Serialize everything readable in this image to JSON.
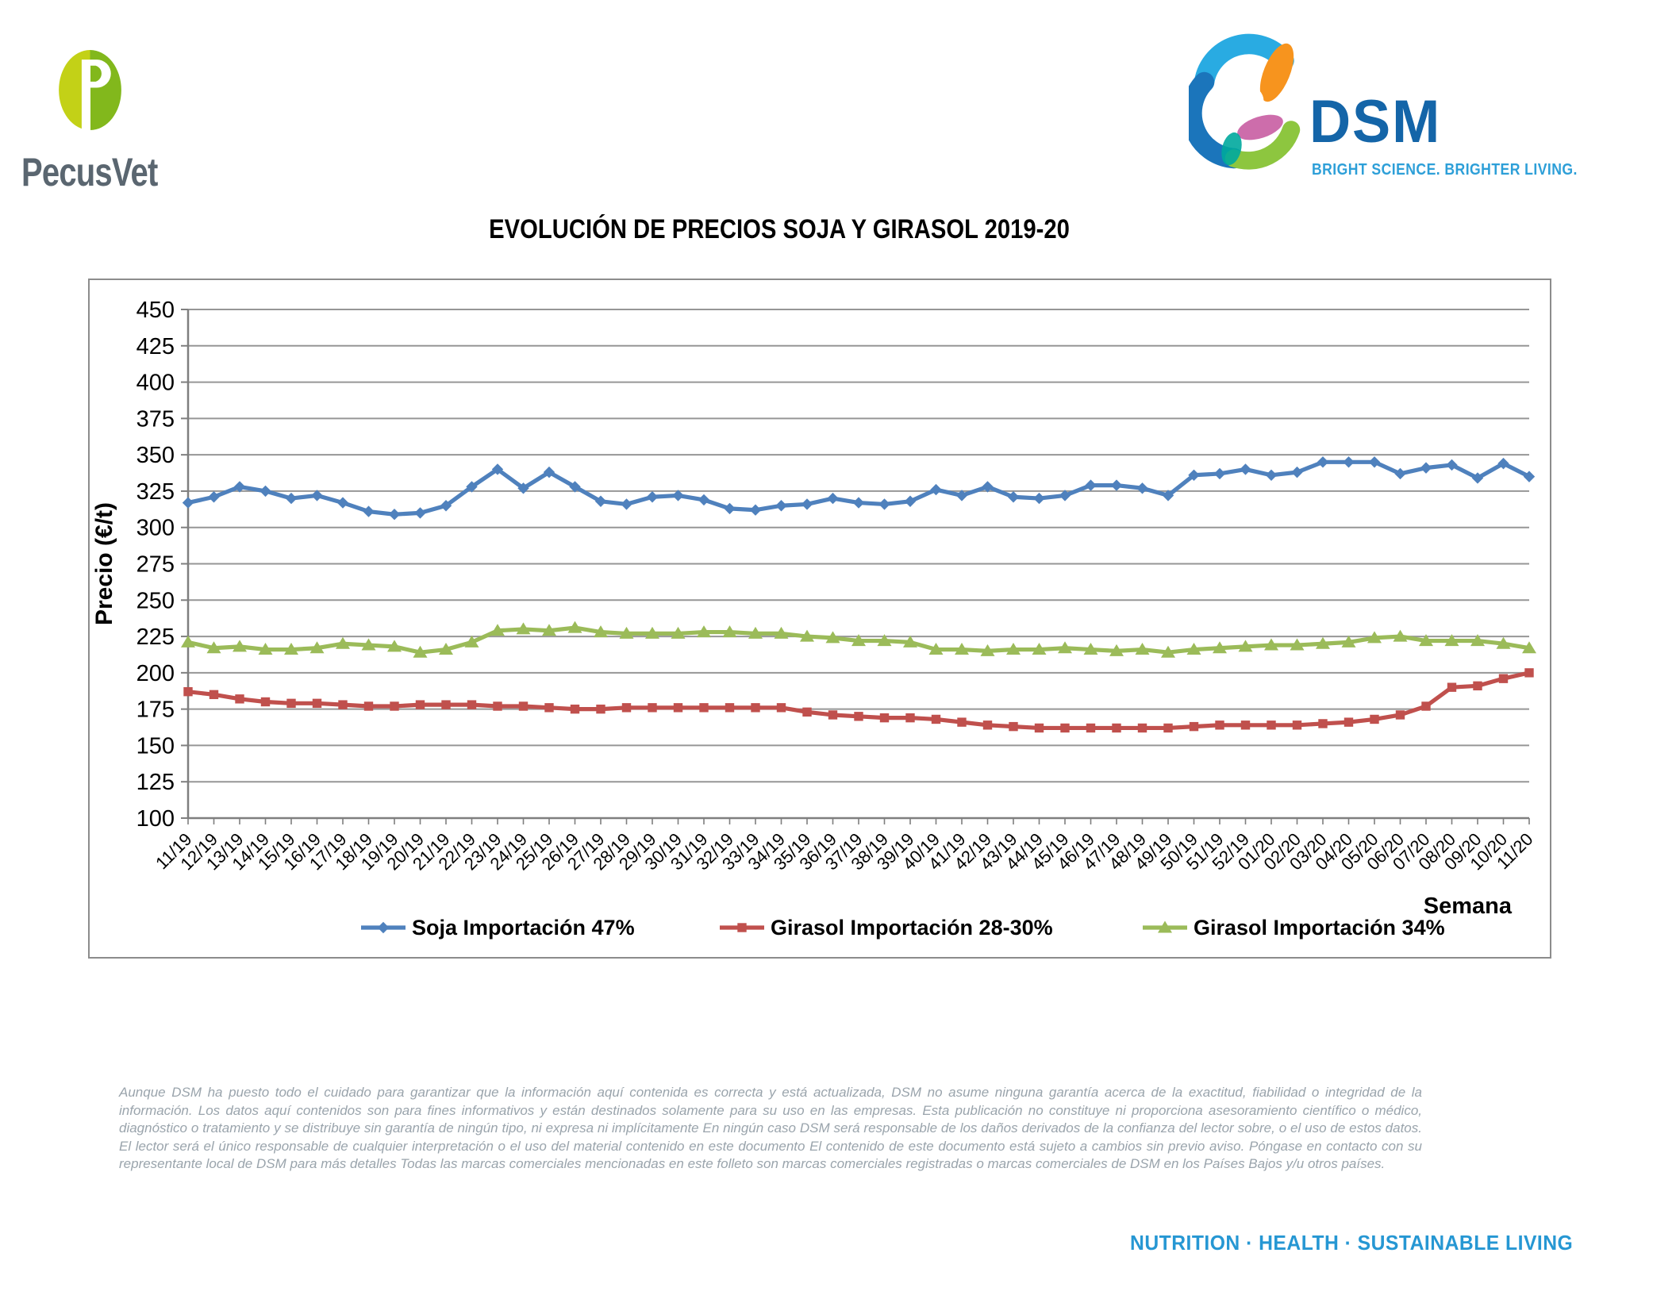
{
  "page": {
    "title": "EVOLUCIÓN DE PRECIOS SOJA Y GIRASOL 2019-20"
  },
  "logos": {
    "pecusvet": {
      "text": "PecusVet",
      "monogram": "P",
      "colors": {
        "left": "#C3D117",
        "right": "#82B81C",
        "text": "#5A6670"
      }
    },
    "dsm": {
      "text": "DSM",
      "tagline": "BRIGHT SCIENCE. BRIGHTER LIVING.",
      "colors": {
        "blue": "#1465A8",
        "tagline": "#2D9FD8",
        "swirl": [
          "#29ABE2",
          "#1B75BB",
          "#8DC63F",
          "#F7941E",
          "#C4549C",
          "#00A99D"
        ]
      }
    }
  },
  "footer": {
    "disclaimer": "Aunque DSM ha puesto todo el cuidado para garantizar que la información aquí contenida es correcta y está actualizada, DSM no asume ninguna garantía acerca de la exactitud, fiabilidad o integridad de la información. Los datos aquí contenidos son para fines informativos y están destinados solamente para su uso en las empresas. Esta publicación no constituye ni proporciona asesoramiento científico o médico, diagnóstico o tratamiento y se distribuye sin garantía de ningún tipo, ni expresa ni implícitamente En ningún caso DSM será responsable de los daños derivados de la confianza del lector sobre, o el uso de estos datos. El lector será el único responsable de cualquier interpretación o el uso del material contenido en este documento El contenido de este documento está sujeto a cambios sin previo aviso. Póngase en contacto con su representante local de DSM para más detalles Todas las marcas comerciales mencionadas en este folleto son marcas comerciales registradas o marcas comerciales de DSM en los Países Bajos y/u otros países.",
    "tagline": "NUTRITION · HEALTH · SUSTAINABLE LIVING",
    "tagline_color": "#2697D3",
    "disclaimer_color": "#9AA4AC"
  },
  "chart_data": {
    "type": "line",
    "title": "EVOLUCIÓN DE PRECIOS SOJA Y GIRASOL 2019-20",
    "xlabel": "Semana",
    "ylabel": "Precio (€/t)",
    "ylim": [
      100,
      450
    ],
    "ytick_step": 25,
    "grid": true,
    "legend_position": "bottom",
    "axis_color": "#7F7F7F",
    "gridline_color": "#969696",
    "categories": [
      "11/19",
      "12/19",
      "13/19",
      "14/19",
      "15/19",
      "16/19",
      "17/19",
      "18/19",
      "19/19",
      "20/19",
      "21/19",
      "22/19",
      "23/19",
      "24/19",
      "25/19",
      "26/19",
      "27/19",
      "28/19",
      "29/19",
      "30/19",
      "31/19",
      "32/19",
      "33/19",
      "34/19",
      "35/19",
      "36/19",
      "37/19",
      "38/19",
      "39/19",
      "40/19",
      "41/19",
      "42/19",
      "43/19",
      "44/19",
      "45/19",
      "46/19",
      "47/19",
      "48/19",
      "49/19",
      "50/19",
      "51/19",
      "52/19",
      "01/20",
      "02/20",
      "03/20",
      "04/20",
      "05/20",
      "06/20",
      "07/20",
      "08/20",
      "09/20",
      "10/20",
      "11/20"
    ],
    "series": [
      {
        "name": "Soja Importación 47%",
        "color": "#4F81BD",
        "marker": "diamond",
        "values": [
          317,
          321,
          328,
          325,
          320,
          322,
          317,
          311,
          309,
          310,
          315,
          328,
          340,
          327,
          338,
          328,
          318,
          316,
          321,
          322,
          319,
          313,
          312,
          315,
          316,
          320,
          317,
          316,
          318,
          326,
          322,
          328,
          321,
          320,
          322,
          329,
          329,
          327,
          322,
          336,
          337,
          340,
          336,
          338,
          345,
          345,
          345,
          337,
          341,
          343,
          334,
          344,
          335
        ]
      },
      {
        "name": "Girasol Importación 28-30%",
        "color": "#C0504D",
        "marker": "square",
        "values": [
          187,
          185,
          182,
          180,
          179,
          179,
          178,
          177,
          177,
          178,
          178,
          178,
          177,
          177,
          176,
          175,
          175,
          176,
          176,
          176,
          176,
          176,
          176,
          176,
          173,
          171,
          170,
          169,
          169,
          168,
          166,
          164,
          163,
          162,
          162,
          162,
          162,
          162,
          162,
          163,
          164,
          164,
          164,
          164,
          165,
          166,
          168,
          171,
          177,
          190,
          191,
          196,
          200
        ]
      },
      {
        "name": "Girasol Importación 34%",
        "color": "#9BBB59",
        "marker": "triangle",
        "values": [
          221,
          217,
          218,
          216,
          216,
          217,
          220,
          219,
          218,
          214,
          216,
          221,
          229,
          230,
          229,
          231,
          228,
          227,
          227,
          227,
          228,
          228,
          227,
          227,
          225,
          224,
          222,
          222,
          221,
          216,
          216,
          215,
          216,
          216,
          217,
          216,
          215,
          216,
          214,
          216,
          217,
          218,
          219,
          219,
          220,
          221,
          224,
          225,
          222,
          222,
          222,
          220,
          217
        ]
      }
    ]
  }
}
